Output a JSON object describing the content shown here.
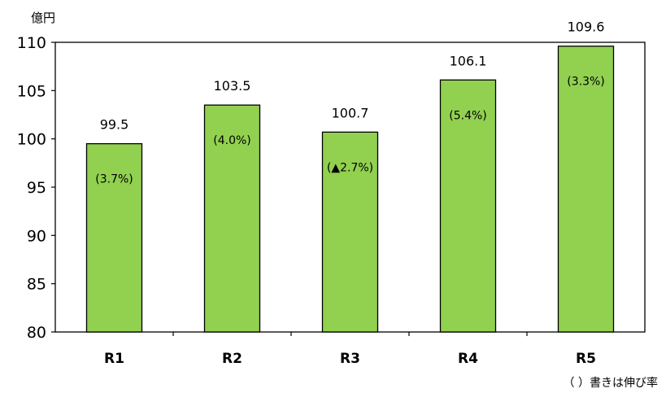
{
  "chart_data": {
    "type": "bar",
    "unit": "億円",
    "categories": [
      "R1",
      "R2",
      "R3",
      "R4",
      "R5"
    ],
    "values": [
      99.5,
      103.5,
      100.7,
      106.1,
      109.6
    ],
    "value_labels": [
      "99.5",
      "103.5",
      "100.7",
      "106.1",
      "109.6"
    ],
    "growth_labels": [
      "(3.7%)",
      "(4.0%)",
      "(▲2.7%)",
      "(5.4%)",
      "(3.3%)"
    ],
    "ylim": [
      80,
      110
    ],
    "yticks": [
      "80",
      "85",
      "90",
      "95",
      "100",
      "105",
      "110"
    ],
    "bar_color": "#92d050",
    "note": "（ ）書きは伸び率"
  }
}
